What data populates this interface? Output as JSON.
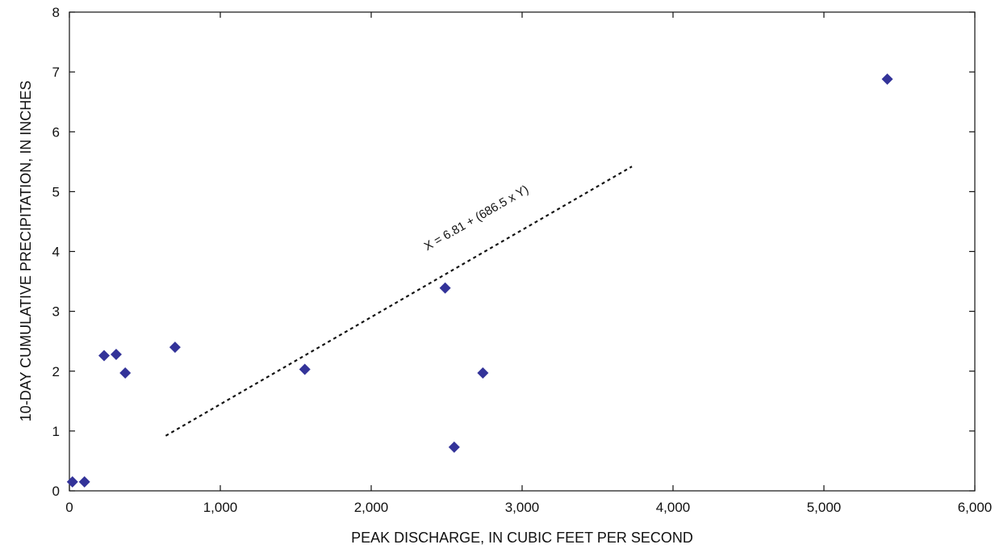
{
  "chart_data": {
    "type": "scatter",
    "title": "",
    "xlabel": "PEAK DISCHARGE, IN CUBIC FEET PER SECOND",
    "ylabel": "10-DAY CUMULATIVE PRECIPITATION, IN INCHES",
    "xlim": [
      0,
      6000
    ],
    "ylim": [
      0,
      8
    ],
    "xticks": [
      0,
      1000,
      2000,
      3000,
      4000,
      5000,
      6000
    ],
    "xtick_labels": [
      "0",
      "1,000",
      "2,000",
      "3,000",
      "4,000",
      "5,000",
      "6,000"
    ],
    "yticks": [
      0,
      1,
      2,
      3,
      4,
      5,
      6,
      7,
      8
    ],
    "ytick_labels": [
      "0",
      "1",
      "2",
      "3",
      "4",
      "5",
      "6",
      "7",
      "8"
    ],
    "grid": false,
    "points": [
      {
        "x": 20,
        "y": 0.15
      },
      {
        "x": 100,
        "y": 0.15
      },
      {
        "x": 230,
        "y": 2.26
      },
      {
        "x": 310,
        "y": 2.28
      },
      {
        "x": 370,
        "y": 1.97
      },
      {
        "x": 700,
        "y": 2.4
      },
      {
        "x": 1560,
        "y": 2.03
      },
      {
        "x": 2490,
        "y": 3.39
      },
      {
        "x": 2550,
        "y": 0.73
      },
      {
        "x": 2740,
        "y": 1.97
      },
      {
        "x": 5420,
        "y": 6.88
      }
    ],
    "marker_color": "#333399",
    "trendline": {
      "equation": "X = 6.81 + (686.5 x Y)",
      "intercept": 6.81,
      "slope": 686.5,
      "y_range": [
        0.92,
        5.42
      ],
      "style": "dotted",
      "color": "#111111"
    }
  }
}
